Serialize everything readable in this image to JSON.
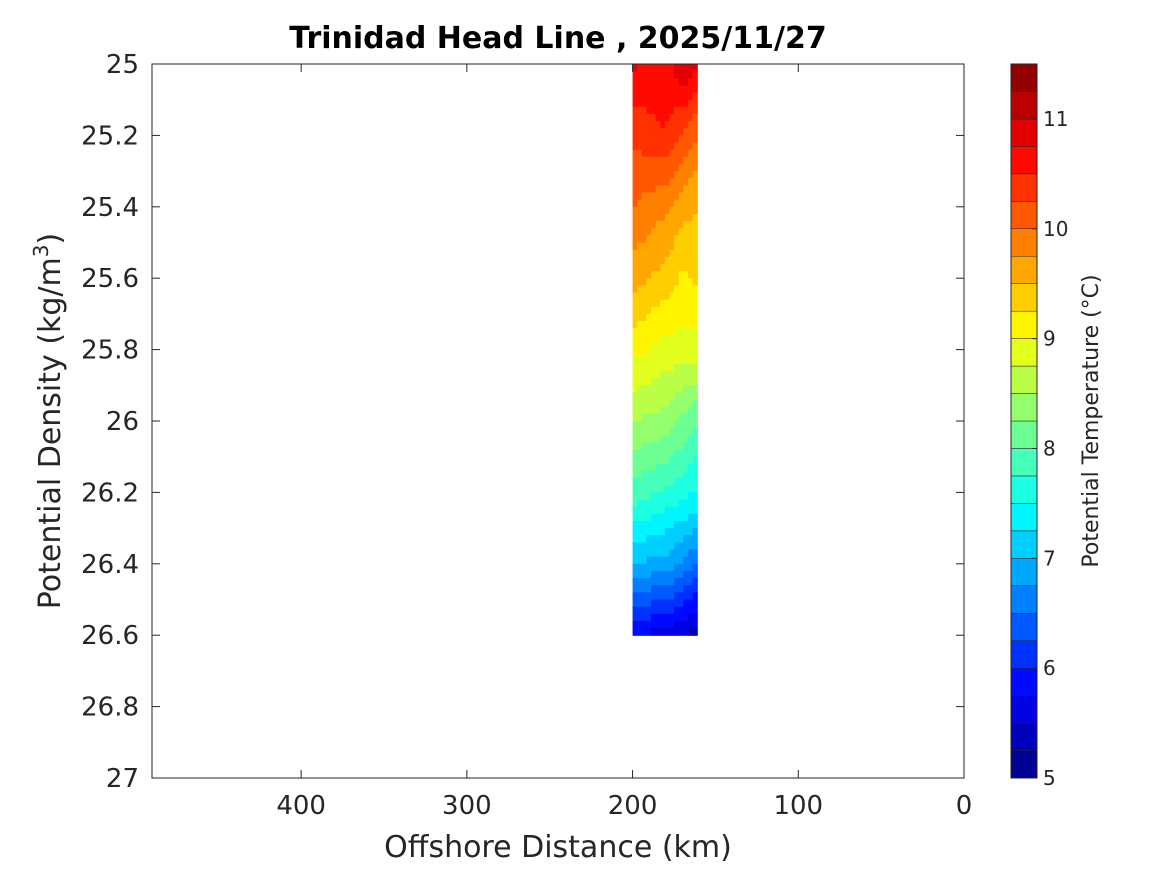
{
  "chart_data": {
    "type": "heatmap",
    "title": "Trinidad Head Line , 2025/11/27",
    "xlabel": "Offshore Distance (km)",
    "ylabel": "Potential Density (kg/m",
    "ylabel_superscript": "3",
    "ylabel_suffix": ")",
    "xlim": [
      490,
      0
    ],
    "ylim": [
      25,
      27
    ],
    "x_reversed": true,
    "y_reversed": true,
    "grid": false,
    "x_ticks": [
      400,
      300,
      200,
      100,
      0
    ],
    "y_ticks": [
      "25",
      "25.2",
      "25.4",
      "25.6",
      "25.8",
      "26",
      "26.2",
      "26.4",
      "26.6",
      "26.8",
      "27"
    ],
    "x": [
      200,
      180,
      170,
      161
    ],
    "y": [
      25.0,
      25.2,
      25.4,
      25.6,
      25.8,
      26.0,
      26.2,
      26.4,
      26.6
    ],
    "z": [
      [
        10.8,
        10.6,
        11.0,
        10.8
      ],
      [
        10.3,
        10.5,
        10.2,
        10.0
      ],
      [
        10.0,
        9.8,
        9.6,
        9.5
      ],
      [
        9.6,
        9.4,
        9.2,
        9.3
      ],
      [
        9.1,
        8.9,
        8.9,
        8.9
      ],
      [
        8.5,
        8.4,
        8.2,
        8.0
      ],
      [
        7.9,
        7.7,
        7.6,
        7.5
      ],
      [
        7.0,
        6.9,
        6.7,
        6.5
      ],
      [
        5.8,
        5.6,
        5.5,
        5.3
      ]
    ],
    "colorbar": {
      "label": "Potential Temperature (°C)",
      "min": 5,
      "max": 11.5,
      "step": 0.25,
      "ticks": [
        5,
        6,
        7,
        8,
        9,
        10,
        11
      ],
      "colormap": "jet"
    }
  }
}
